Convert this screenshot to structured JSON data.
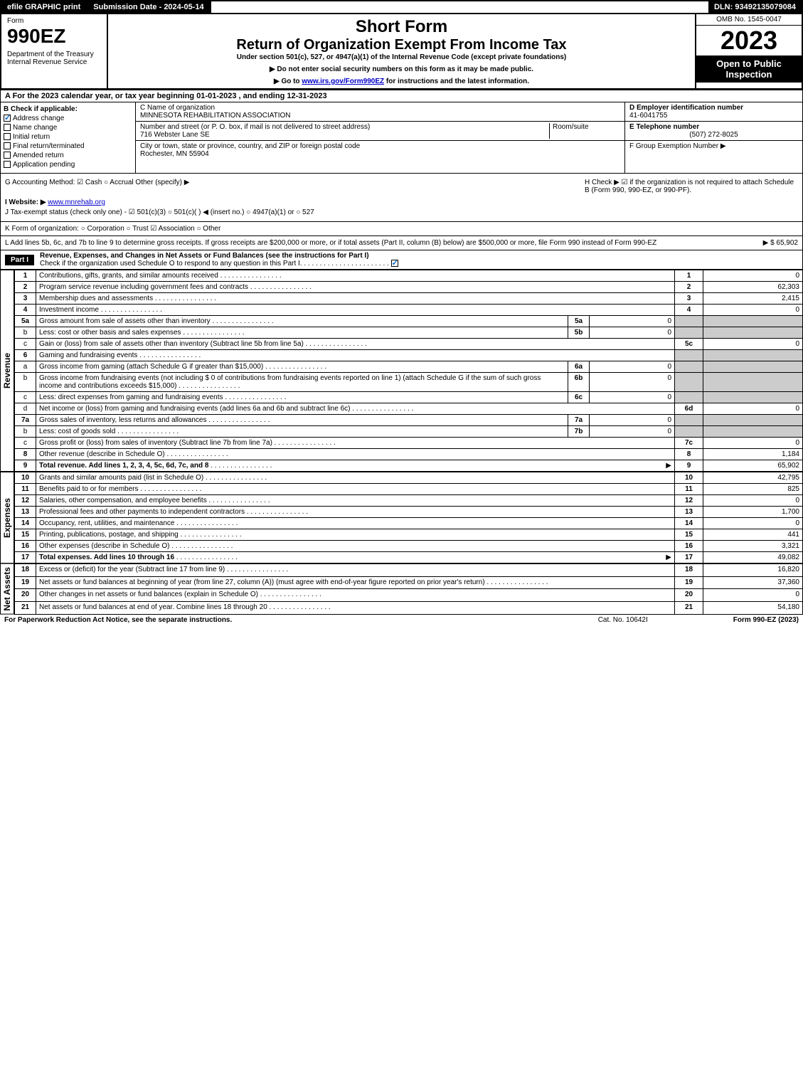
{
  "topbar": {
    "efile": "efile GRAPHIC print",
    "submission": "Submission Date - 2024-05-14",
    "dln": "DLN: 93492135079084"
  },
  "header": {
    "form_label": "Form",
    "form_number": "990EZ",
    "dept": "Department of the Treasury\nInternal Revenue Service",
    "short_form": "Short Form",
    "title": "Return of Organization Exempt From Income Tax",
    "subtitle": "Under section 501(c), 527, or 4947(a)(1) of the Internal Revenue Code (except private foundations)",
    "note1": "▶ Do not enter social security numbers on this form as it may be made public.",
    "note2": "▶ Go to www.irs.gov/Form990EZ for instructions and the latest information.",
    "omb": "OMB No. 1545-0047",
    "year": "2023",
    "open": "Open to Public Inspection"
  },
  "section_a": "A  For the 2023 calendar year, or tax year beginning 01-01-2023 , and ending 12-31-2023",
  "section_b": {
    "label": "B  Check if applicable:",
    "items": [
      "Address change",
      "Name change",
      "Initial return",
      "Final return/terminated",
      "Amended return",
      "Application pending"
    ],
    "checked": [
      true,
      false,
      false,
      false,
      false,
      false
    ]
  },
  "section_c": {
    "name_label": "C Name of organization",
    "name": "MINNESOTA REHABILITATION ASSOCIATION",
    "street_label": "Number and street (or P. O. box, if mail is not delivered to street address)",
    "street": "716 Webster Lane SE",
    "room_label": "Room/suite",
    "city_label": "City or town, state or province, country, and ZIP or foreign postal code",
    "city": "Rochester, MN  55904"
  },
  "section_d": {
    "ein_label": "D Employer identification number",
    "ein": "41-6041755",
    "tel_label": "E Telephone number",
    "tel": "(507) 272-8025",
    "group_label": "F Group Exemption Number  ▶"
  },
  "lower": {
    "g": "G Accounting Method:  ☑ Cash  ○ Accrual   Other (specify) ▶",
    "h": "H  Check ▶ ☑ if the organization is not required to attach Schedule B (Form 990, 990-EZ, or 990-PF).",
    "i_label": "I Website: ▶",
    "i_val": "www.mnrehab.org",
    "j": "J Tax-exempt status (check only one) - ☑ 501(c)(3)  ○ 501(c)( ) ◀ (insert no.)  ○ 4947(a)(1) or  ○ 527",
    "k": "K Form of organization:  ○ Corporation  ○ Trust  ☑ Association  ○ Other",
    "l": "L Add lines 5b, 6c, and 7b to line 9 to determine gross receipts. If gross receipts are $200,000 or more, or if total assets (Part II, column (B) below) are $500,000 or more, file Form 990 instead of Form 990-EZ",
    "l_amount": "▶ $ 65,902"
  },
  "part1": {
    "header": "Part I",
    "title": "Revenue, Expenses, and Changes in Net Assets or Fund Balances (see the instructions for Part I)",
    "check": "Check if the organization used Schedule O to respond to any question in this Part I"
  },
  "side_labels": {
    "revenue": "Revenue",
    "expenses": "Expenses",
    "netassets": "Net Assets"
  },
  "revenue_lines": [
    {
      "n": "1",
      "desc": "Contributions, gifts, grants, and similar amounts received",
      "rn": "1",
      "rv": "0"
    },
    {
      "n": "2",
      "desc": "Program service revenue including government fees and contracts",
      "rn": "2",
      "rv": "62,303"
    },
    {
      "n": "3",
      "desc": "Membership dues and assessments",
      "rn": "3",
      "rv": "2,415"
    },
    {
      "n": "4",
      "desc": "Investment income",
      "rn": "4",
      "rv": "0"
    },
    {
      "n": "5a",
      "desc": "Gross amount from sale of assets other than inventory",
      "bl": "5a",
      "bv": "0"
    },
    {
      "n": "b",
      "desc": "Less: cost or other basis and sales expenses",
      "bl": "5b",
      "bv": "0"
    },
    {
      "n": "c",
      "desc": "Gain or (loss) from sale of assets other than inventory (Subtract line 5b from line 5a)",
      "rn": "5c",
      "rv": "0"
    },
    {
      "n": "6",
      "desc": "Gaming and fundraising events"
    },
    {
      "n": "a",
      "desc": "Gross income from gaming (attach Schedule G if greater than $15,000)",
      "bl": "6a",
      "bv": "0"
    },
    {
      "n": "b",
      "desc": "Gross income from fundraising events (not including $ 0            of contributions from fundraising events reported on line 1) (attach Schedule G if the sum of such gross income and contributions exceeds $15,000)",
      "bl": "6b",
      "bv": "0"
    },
    {
      "n": "c",
      "desc": "Less: direct expenses from gaming and fundraising events",
      "bl": "6c",
      "bv": "0"
    },
    {
      "n": "d",
      "desc": "Net income or (loss) from gaming and fundraising events (add lines 6a and 6b and subtract line 6c)",
      "rn": "6d",
      "rv": "0"
    },
    {
      "n": "7a",
      "desc": "Gross sales of inventory, less returns and allowances",
      "bl": "7a",
      "bv": "0"
    },
    {
      "n": "b",
      "desc": "Less: cost of goods sold",
      "bl": "7b",
      "bv": "0"
    },
    {
      "n": "c",
      "desc": "Gross profit or (loss) from sales of inventory (Subtract line 7b from line 7a)",
      "rn": "7c",
      "rv": "0"
    },
    {
      "n": "8",
      "desc": "Other revenue (describe in Schedule O)",
      "rn": "8",
      "rv": "1,184"
    },
    {
      "n": "9",
      "desc": "Total revenue. Add lines 1, 2, 3, 4, 5c, 6d, 7c, and 8",
      "rn": "9",
      "rv": "65,902",
      "bold": true,
      "arrow": true
    }
  ],
  "expense_lines": [
    {
      "n": "10",
      "desc": "Grants and similar amounts paid (list in Schedule O)",
      "rn": "10",
      "rv": "42,795"
    },
    {
      "n": "11",
      "desc": "Benefits paid to or for members",
      "rn": "11",
      "rv": "825"
    },
    {
      "n": "12",
      "desc": "Salaries, other compensation, and employee benefits",
      "rn": "12",
      "rv": "0"
    },
    {
      "n": "13",
      "desc": "Professional fees and other payments to independent contractors",
      "rn": "13",
      "rv": "1,700"
    },
    {
      "n": "14",
      "desc": "Occupancy, rent, utilities, and maintenance",
      "rn": "14",
      "rv": "0"
    },
    {
      "n": "15",
      "desc": "Printing, publications, postage, and shipping",
      "rn": "15",
      "rv": "441"
    },
    {
      "n": "16",
      "desc": "Other expenses (describe in Schedule O)",
      "rn": "16",
      "rv": "3,321"
    },
    {
      "n": "17",
      "desc": "Total expenses. Add lines 10 through 16",
      "rn": "17",
      "rv": "49,082",
      "bold": true,
      "arrow": true
    }
  ],
  "netasset_lines": [
    {
      "n": "18",
      "desc": "Excess or (deficit) for the year (Subtract line 17 from line 9)",
      "rn": "18",
      "rv": "16,820"
    },
    {
      "n": "19",
      "desc": "Net assets or fund balances at beginning of year (from line 27, column (A)) (must agree with end-of-year figure reported on prior year's return)",
      "rn": "19",
      "rv": "37,360"
    },
    {
      "n": "20",
      "desc": "Other changes in net assets or fund balances (explain in Schedule O)",
      "rn": "20",
      "rv": "0"
    },
    {
      "n": "21",
      "desc": "Net assets or fund balances at end of year. Combine lines 18 through 20",
      "rn": "21",
      "rv": "54,180"
    }
  ],
  "footer": {
    "left": "For Paperwork Reduction Act Notice, see the separate instructions.",
    "center": "Cat. No. 10642I",
    "right": "Form 990-EZ (2023)"
  }
}
